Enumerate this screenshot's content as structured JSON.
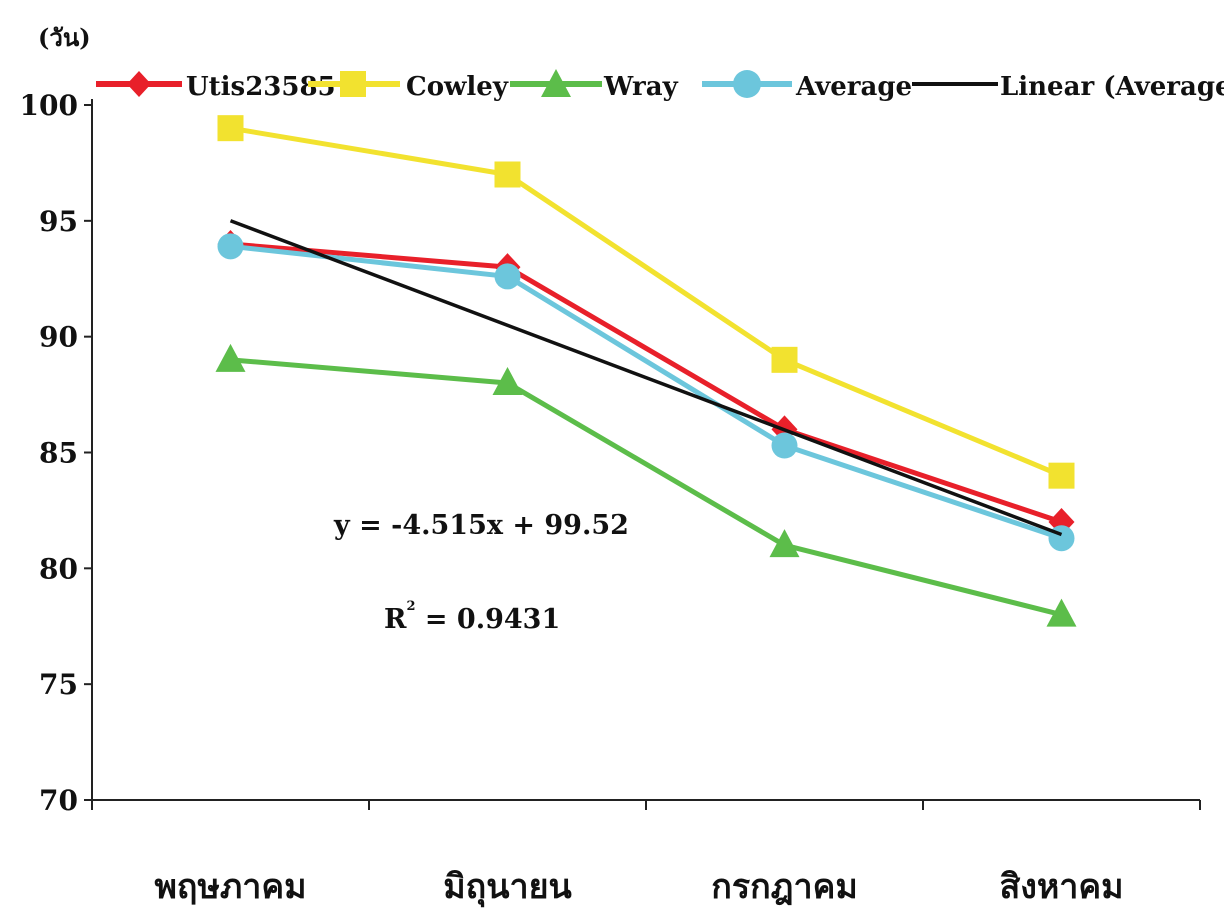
{
  "chart_data": {
    "type": "line",
    "y_unit_label": "(วัน)",
    "categories": [
      "พฤษภาคม",
      "มิถุนายน",
      "กรกฎาคม",
      "สิงหาคม"
    ],
    "series": [
      {
        "name": "Utis23585",
        "values": [
          94,
          93,
          86,
          82
        ],
        "color": "#e8202a",
        "marker": "diamond"
      },
      {
        "name": "Cowley",
        "values": [
          99,
          97,
          89,
          84
        ],
        "color": "#f2e22f",
        "marker": "square"
      },
      {
        "name": "Wray",
        "values": [
          89,
          88,
          81,
          78
        ],
        "color": "#5cbd4a",
        "marker": "triangle"
      },
      {
        "name": "Average",
        "values": [
          93.9,
          92.6,
          85.3,
          81.3
        ],
        "color": "#6cc6dc",
        "marker": "circle"
      }
    ],
    "trendline": {
      "name": "Linear (Average)",
      "slope": -4.515,
      "intercept": 99.52,
      "color": "#111111"
    },
    "equation_text": "y = -4.515x + 99.52",
    "r2_prefix": "R",
    "r2_exp": "2",
    "r2_value": " = 0.9431",
    "ylim": [
      70,
      100
    ],
    "yticks": [
      70,
      75,
      80,
      85,
      90,
      95,
      100
    ],
    "grid": false,
    "legend_position": "top"
  }
}
